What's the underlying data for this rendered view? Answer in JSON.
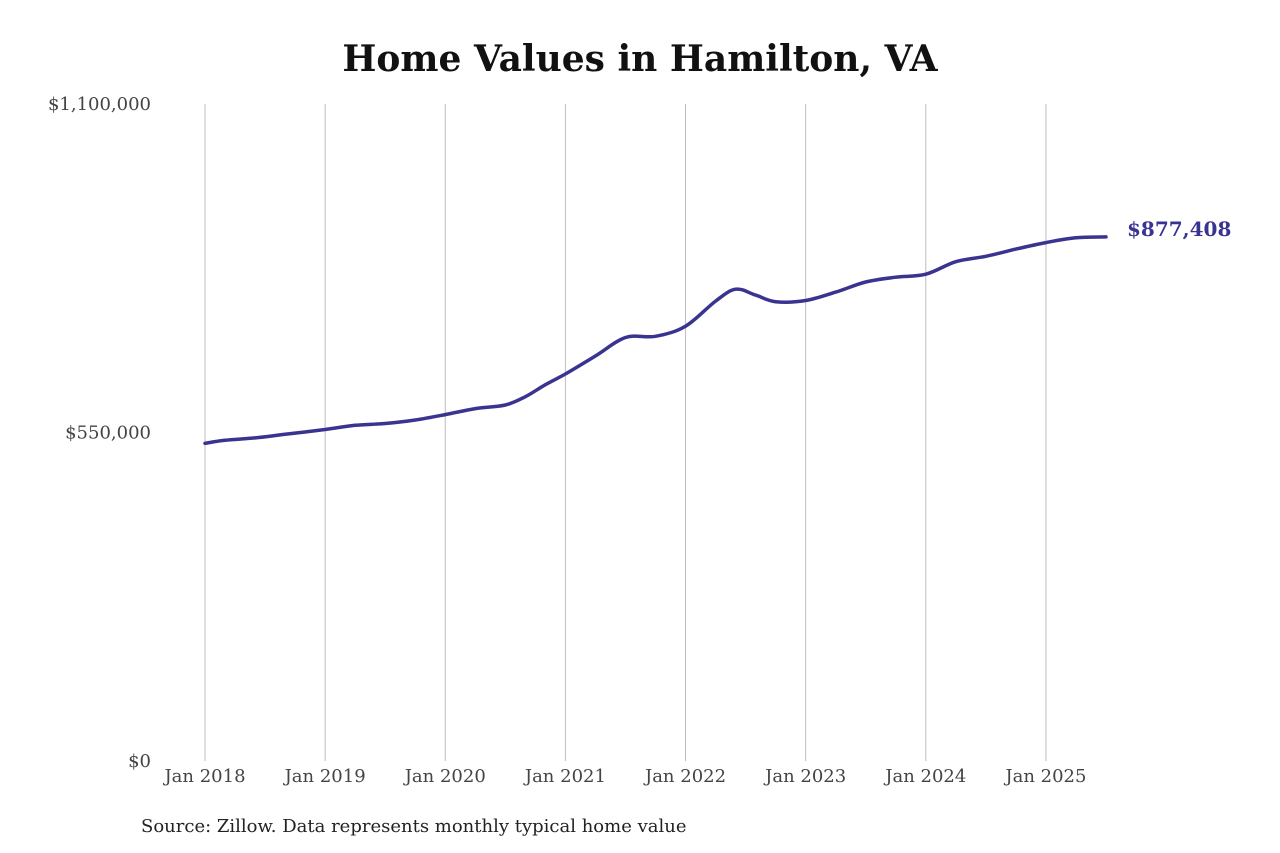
{
  "chart_data": {
    "type": "line",
    "title": "Home Values in Hamilton, VA",
    "source": "Source: Zillow. Data represents monthly typical home value",
    "xlabel": "",
    "ylabel": "",
    "ylim": [
      0,
      1100000
    ],
    "xlim": [
      "2018-01",
      "2025-07"
    ],
    "y_ticks": [
      {
        "value": 0,
        "label": "$0"
      },
      {
        "value": 550000,
        "label": "$550,000"
      },
      {
        "value": 1100000,
        "label": "$1,100,000"
      }
    ],
    "x_ticks": [
      {
        "value": "2018-01",
        "label": "Jan 2018"
      },
      {
        "value": "2019-01",
        "label": "Jan 2019"
      },
      {
        "value": "2020-01",
        "label": "Jan 2020"
      },
      {
        "value": "2021-01",
        "label": "Jan 2021"
      },
      {
        "value": "2022-01",
        "label": "Jan 2022"
      },
      {
        "value": "2023-01",
        "label": "Jan 2023"
      },
      {
        "value": "2024-01",
        "label": "Jan 2024"
      },
      {
        "value": "2025-01",
        "label": "Jan 2025"
      }
    ],
    "grid": {
      "vertical": true,
      "horizontal": false
    },
    "series": [
      {
        "color": "#3a3491",
        "end_label": "$877,408",
        "points": [
          {
            "x": "2018-01",
            "y": 532000
          },
          {
            "x": "2018-03",
            "y": 537000
          },
          {
            "x": "2018-06",
            "y": 541000
          },
          {
            "x": "2018-09",
            "y": 547000
          },
          {
            "x": "2019-01",
            "y": 555000
          },
          {
            "x": "2019-04",
            "y": 562000
          },
          {
            "x": "2019-07",
            "y": 565000
          },
          {
            "x": "2019-10",
            "y": 571000
          },
          {
            "x": "2020-01",
            "y": 580000
          },
          {
            "x": "2020-04",
            "y": 590000
          },
          {
            "x": "2020-07",
            "y": 596000
          },
          {
            "x": "2020-09",
            "y": 610000
          },
          {
            "x": "2020-11",
            "y": 630000
          },
          {
            "x": "2021-01",
            "y": 648000
          },
          {
            "x": "2021-04",
            "y": 678000
          },
          {
            "x": "2021-07",
            "y": 709000
          },
          {
            "x": "2021-10",
            "y": 711000
          },
          {
            "x": "2022-01",
            "y": 728000
          },
          {
            "x": "2022-04",
            "y": 770000
          },
          {
            "x": "2022-06",
            "y": 790000
          },
          {
            "x": "2022-08",
            "y": 780000
          },
          {
            "x": "2022-10",
            "y": 769000
          },
          {
            "x": "2023-01",
            "y": 771000
          },
          {
            "x": "2023-04",
            "y": 785000
          },
          {
            "x": "2023-07",
            "y": 802000
          },
          {
            "x": "2023-10",
            "y": 810000
          },
          {
            "x": "2024-01",
            "y": 815000
          },
          {
            "x": "2024-04",
            "y": 836000
          },
          {
            "x": "2024-07",
            "y": 845000
          },
          {
            "x": "2024-10",
            "y": 857000
          },
          {
            "x": "2025-01",
            "y": 868000
          },
          {
            "x": "2025-04",
            "y": 876000
          },
          {
            "x": "2025-07",
            "y": 877408
          }
        ]
      }
    ]
  }
}
